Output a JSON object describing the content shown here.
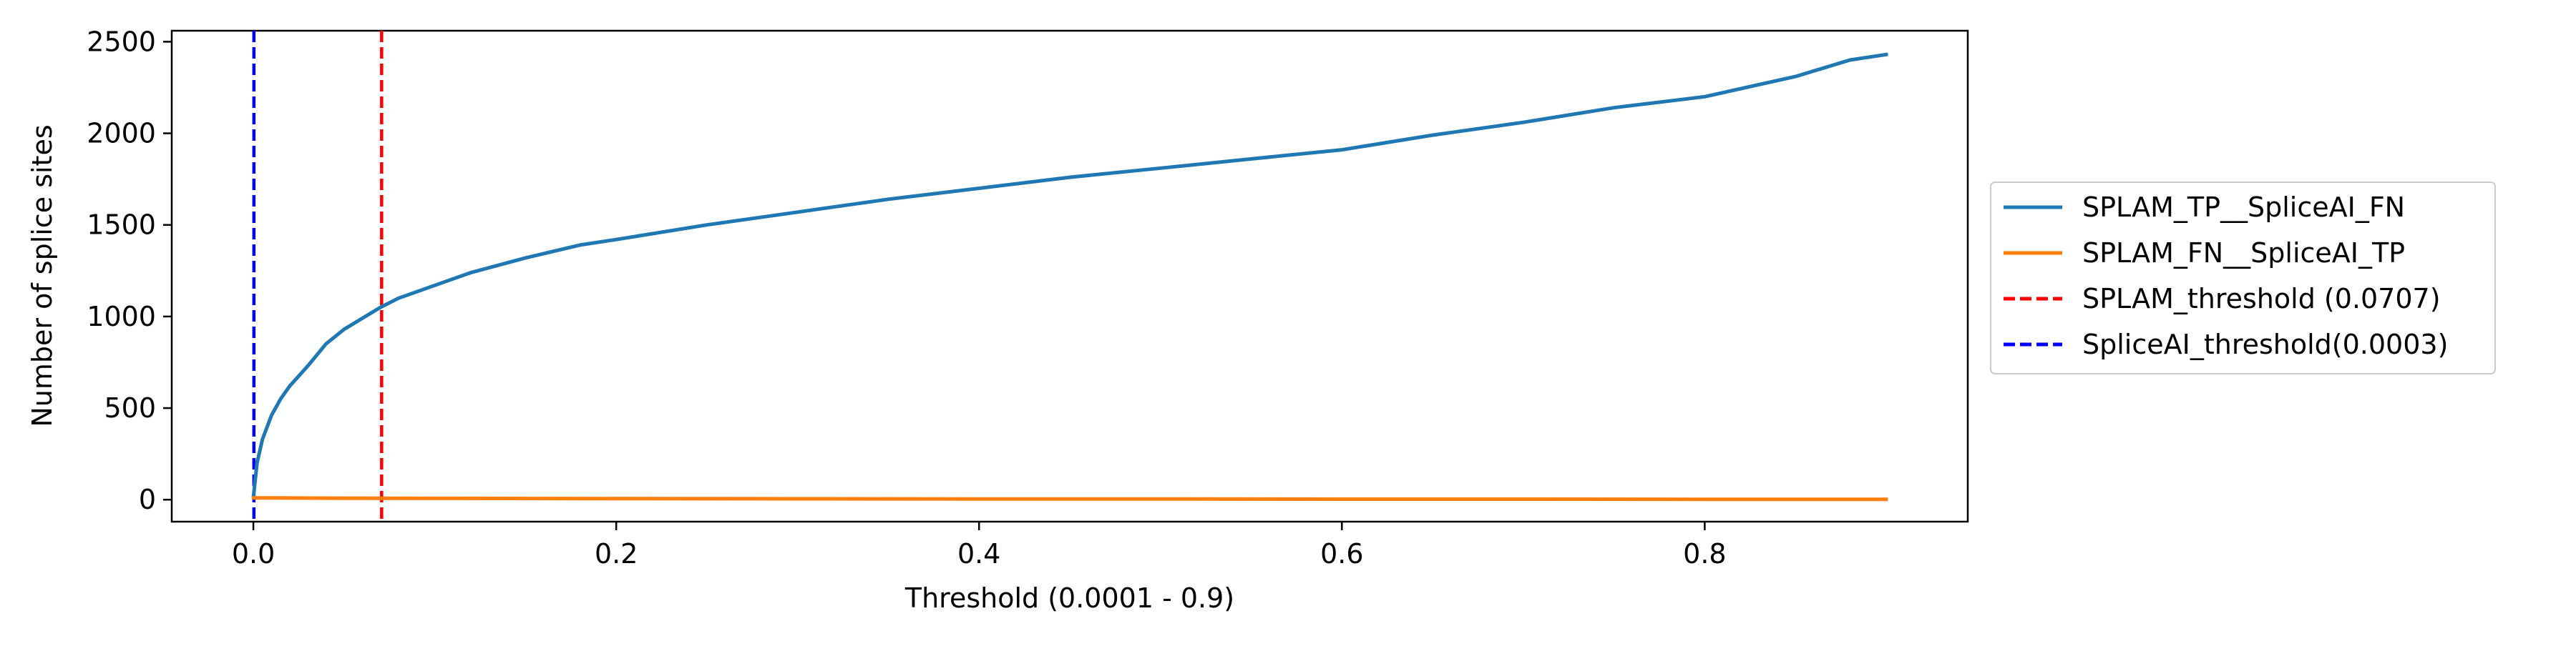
{
  "chart_data": {
    "type": "line",
    "title": "",
    "xlabel": "Threshold (0.0001 - 0.9)",
    "ylabel": "Number of splice sites",
    "xlim": [
      -0.045,
      0.945
    ],
    "ylim": [
      -120,
      2560
    ],
    "x_ticks": [
      0.0,
      0.2,
      0.4,
      0.6,
      0.8
    ],
    "x_tick_labels": [
      "0.0",
      "0.2",
      "0.4",
      "0.6",
      "0.8"
    ],
    "y_ticks": [
      0,
      500,
      1000,
      1500,
      2000,
      2500
    ],
    "y_tick_labels": [
      "0",
      "500",
      "1000",
      "1500",
      "2000",
      "2500"
    ],
    "grid": false,
    "legend_position": "outside-right",
    "series": [
      {
        "name": "SPLAM_TP__SpliceAI_FN",
        "color": "#1f77b4",
        "style": "solid",
        "x": [
          0.0001,
          0.002,
          0.005,
          0.01,
          0.015,
          0.02,
          0.03,
          0.04,
          0.05,
          0.06,
          0.07,
          0.08,
          0.1,
          0.12,
          0.15,
          0.18,
          0.2,
          0.25,
          0.3,
          0.35,
          0.4,
          0.45,
          0.5,
          0.55,
          0.6,
          0.65,
          0.7,
          0.75,
          0.8,
          0.85,
          0.88,
          0.9
        ],
        "y": [
          20,
          200,
          330,
          460,
          550,
          620,
          730,
          850,
          930,
          990,
          1050,
          1100,
          1170,
          1240,
          1320,
          1390,
          1420,
          1500,
          1570,
          1640,
          1700,
          1760,
          1810,
          1860,
          1910,
          1990,
          2060,
          2140,
          2200,
          2310,
          2400,
          2430
        ]
      },
      {
        "name": "SPLAM_FN__SpliceAI_TP",
        "color": "#ff7f0e",
        "style": "solid",
        "x": [
          0.0001,
          0.05,
          0.1,
          0.2,
          0.3,
          0.4,
          0.5,
          0.6,
          0.7,
          0.8,
          0.9
        ],
        "y": [
          10,
          8,
          7,
          6,
          5,
          4,
          4,
          3,
          3,
          2,
          2
        ]
      }
    ],
    "vlines": [
      {
        "name": "SPLAM_threshold (0.0707)",
        "x": 0.0707,
        "color": "#ff0000",
        "style": "dashed"
      },
      {
        "name": "SpliceAI_threshold(0.0003)",
        "x": 0.0003,
        "color": "#0000ff",
        "style": "dashed"
      }
    ]
  }
}
